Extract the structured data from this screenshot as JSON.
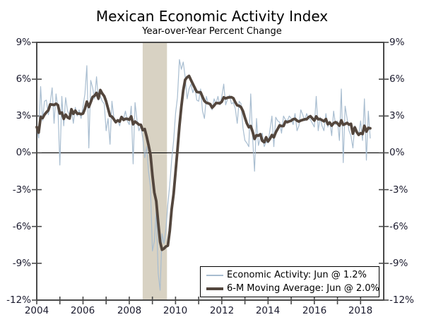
{
  "header": {
    "title": "Mexican Economic Activity Index",
    "subtitle": "Year-over-Year Percent Change"
  },
  "chart_data": {
    "type": "line",
    "title": "Mexican Economic Activity Index",
    "subtitle": "Year-over-Year Percent Change",
    "frequency": "monthly",
    "start": "2004-01",
    "end": "2018-06",
    "xlim": [
      2004,
      2019
    ],
    "ylim": [
      -12,
      9
    ],
    "grid": "zero-line-only",
    "axis_color": "#4a4a4a",
    "zero_line_color": "#000000",
    "y_ticks": [
      {
        "v": 9,
        "label": "9%"
      },
      {
        "v": 6,
        "label": "6%"
      },
      {
        "v": 3,
        "label": "3%"
      },
      {
        "v": 0,
        "label": "0%"
      },
      {
        "v": -3,
        "label": "-3%"
      },
      {
        "v": -6,
        "label": "-6%"
      },
      {
        "v": -9,
        "label": "-9%"
      },
      {
        "v": -12,
        "label": "-12%"
      }
    ],
    "x_minor_tick_years": [
      2004,
      2005,
      2006,
      2007,
      2008,
      2009,
      2010,
      2011,
      2012,
      2013,
      2014,
      2015,
      2016,
      2017,
      2018
    ],
    "x_ticks": [
      {
        "v": 2004,
        "label": "2004"
      },
      {
        "v": 2006,
        "label": "2006"
      },
      {
        "v": 2008,
        "label": "2008"
      },
      {
        "v": 2010,
        "label": "2010"
      },
      {
        "v": 2012,
        "label": "2012"
      },
      {
        "v": 2014,
        "label": "2014"
      },
      {
        "v": 2016,
        "label": "2016"
      },
      {
        "v": 2018,
        "label": "2018"
      }
    ],
    "recession_band": {
      "start": 2008.58,
      "end": 2009.63,
      "color": "#d8d2c3"
    },
    "legend_position": "bottom-right",
    "series": [
      {
        "name": "Economic Activity: Jun @ 1.2%",
        "color": "#a8bdd0",
        "width": 1.2,
        "latest": {
          "period": "Jun 2018",
          "value": 1.2
        },
        "values": [
          2.1,
          1.2,
          5.4,
          2.6,
          4.2,
          4.3,
          3.1,
          4.1,
          5.3,
          2.4,
          4.8,
          3.6,
          -1.0,
          4.6,
          2.2,
          4.5,
          3.4,
          3.1,
          3.5,
          2.4,
          3.7,
          3.0,
          3.5,
          2.8,
          3.8,
          4.8,
          7.1,
          0.4,
          5.9,
          5.3,
          4.4,
          6.2,
          4.3,
          4.6,
          4.2,
          4.0,
          1.8,
          2.8,
          0.7,
          4.2,
          2.9,
          2.6,
          2.7,
          2.2,
          2.9,
          2.8,
          3.4,
          2.6,
          2.3,
          3.8,
          -0.9,
          4.1,
          2.7,
          1.8,
          2.2,
          1.2,
          -0.4,
          0.5,
          -1.5,
          -2.8,
          -8.0,
          -7.2,
          -4.6,
          -9.8,
          -11.2,
          -6.6,
          -7.4,
          -6.2,
          -4.2,
          -2.6,
          -0.6,
          1.0,
          3.2,
          4.5,
          7.6,
          6.8,
          7.4,
          6.2,
          4.4,
          5.2,
          5.6,
          4.9,
          5.4,
          4.3,
          4.2,
          5.2,
          3.4,
          2.8,
          4.6,
          4.0,
          3.8,
          3.5,
          4.4,
          4.0,
          4.6,
          3.9,
          4.6,
          5.6,
          3.9,
          4.4,
          4.7,
          4.0,
          4.1,
          3.6,
          2.4,
          4.2,
          4.0,
          2.0,
          1.0,
          0.8,
          0.5,
          4.8,
          1.2,
          -1.5,
          2.8,
          0.6,
          1.2,
          1.6,
          0.5,
          0.9,
          0.8,
          1.9,
          3.0,
          0.5,
          2.9,
          2.6,
          2.5,
          1.6,
          3.0,
          2.7,
          2.6,
          3.0,
          2.8,
          2.3,
          3.2,
          1.8,
          2.2,
          3.5,
          3.1,
          2.6,
          3.2,
          2.8,
          2.7,
          2.4,
          2.1,
          4.6,
          1.8,
          2.9,
          2.2,
          1.8,
          3.2,
          2.1,
          2.6,
          1.4,
          3.4,
          2.3,
          2.6,
          1.0,
          5.2,
          -0.8,
          3.8,
          2.8,
          1.8,
          1.4,
          0.4,
          2.2,
          1.6,
          1.4,
          2.6,
          1.0,
          4.4,
          -0.6,
          3.4,
          1.2
        ]
      },
      {
        "name": "6-M Moving Average: Jun @ 2.0%",
        "color": "#53463d",
        "width": 3.8,
        "latest": {
          "period": "Jun 2018",
          "value": 2.0
        },
        "derived": "trailing-6-month-average-of-series-0"
      }
    ]
  }
}
